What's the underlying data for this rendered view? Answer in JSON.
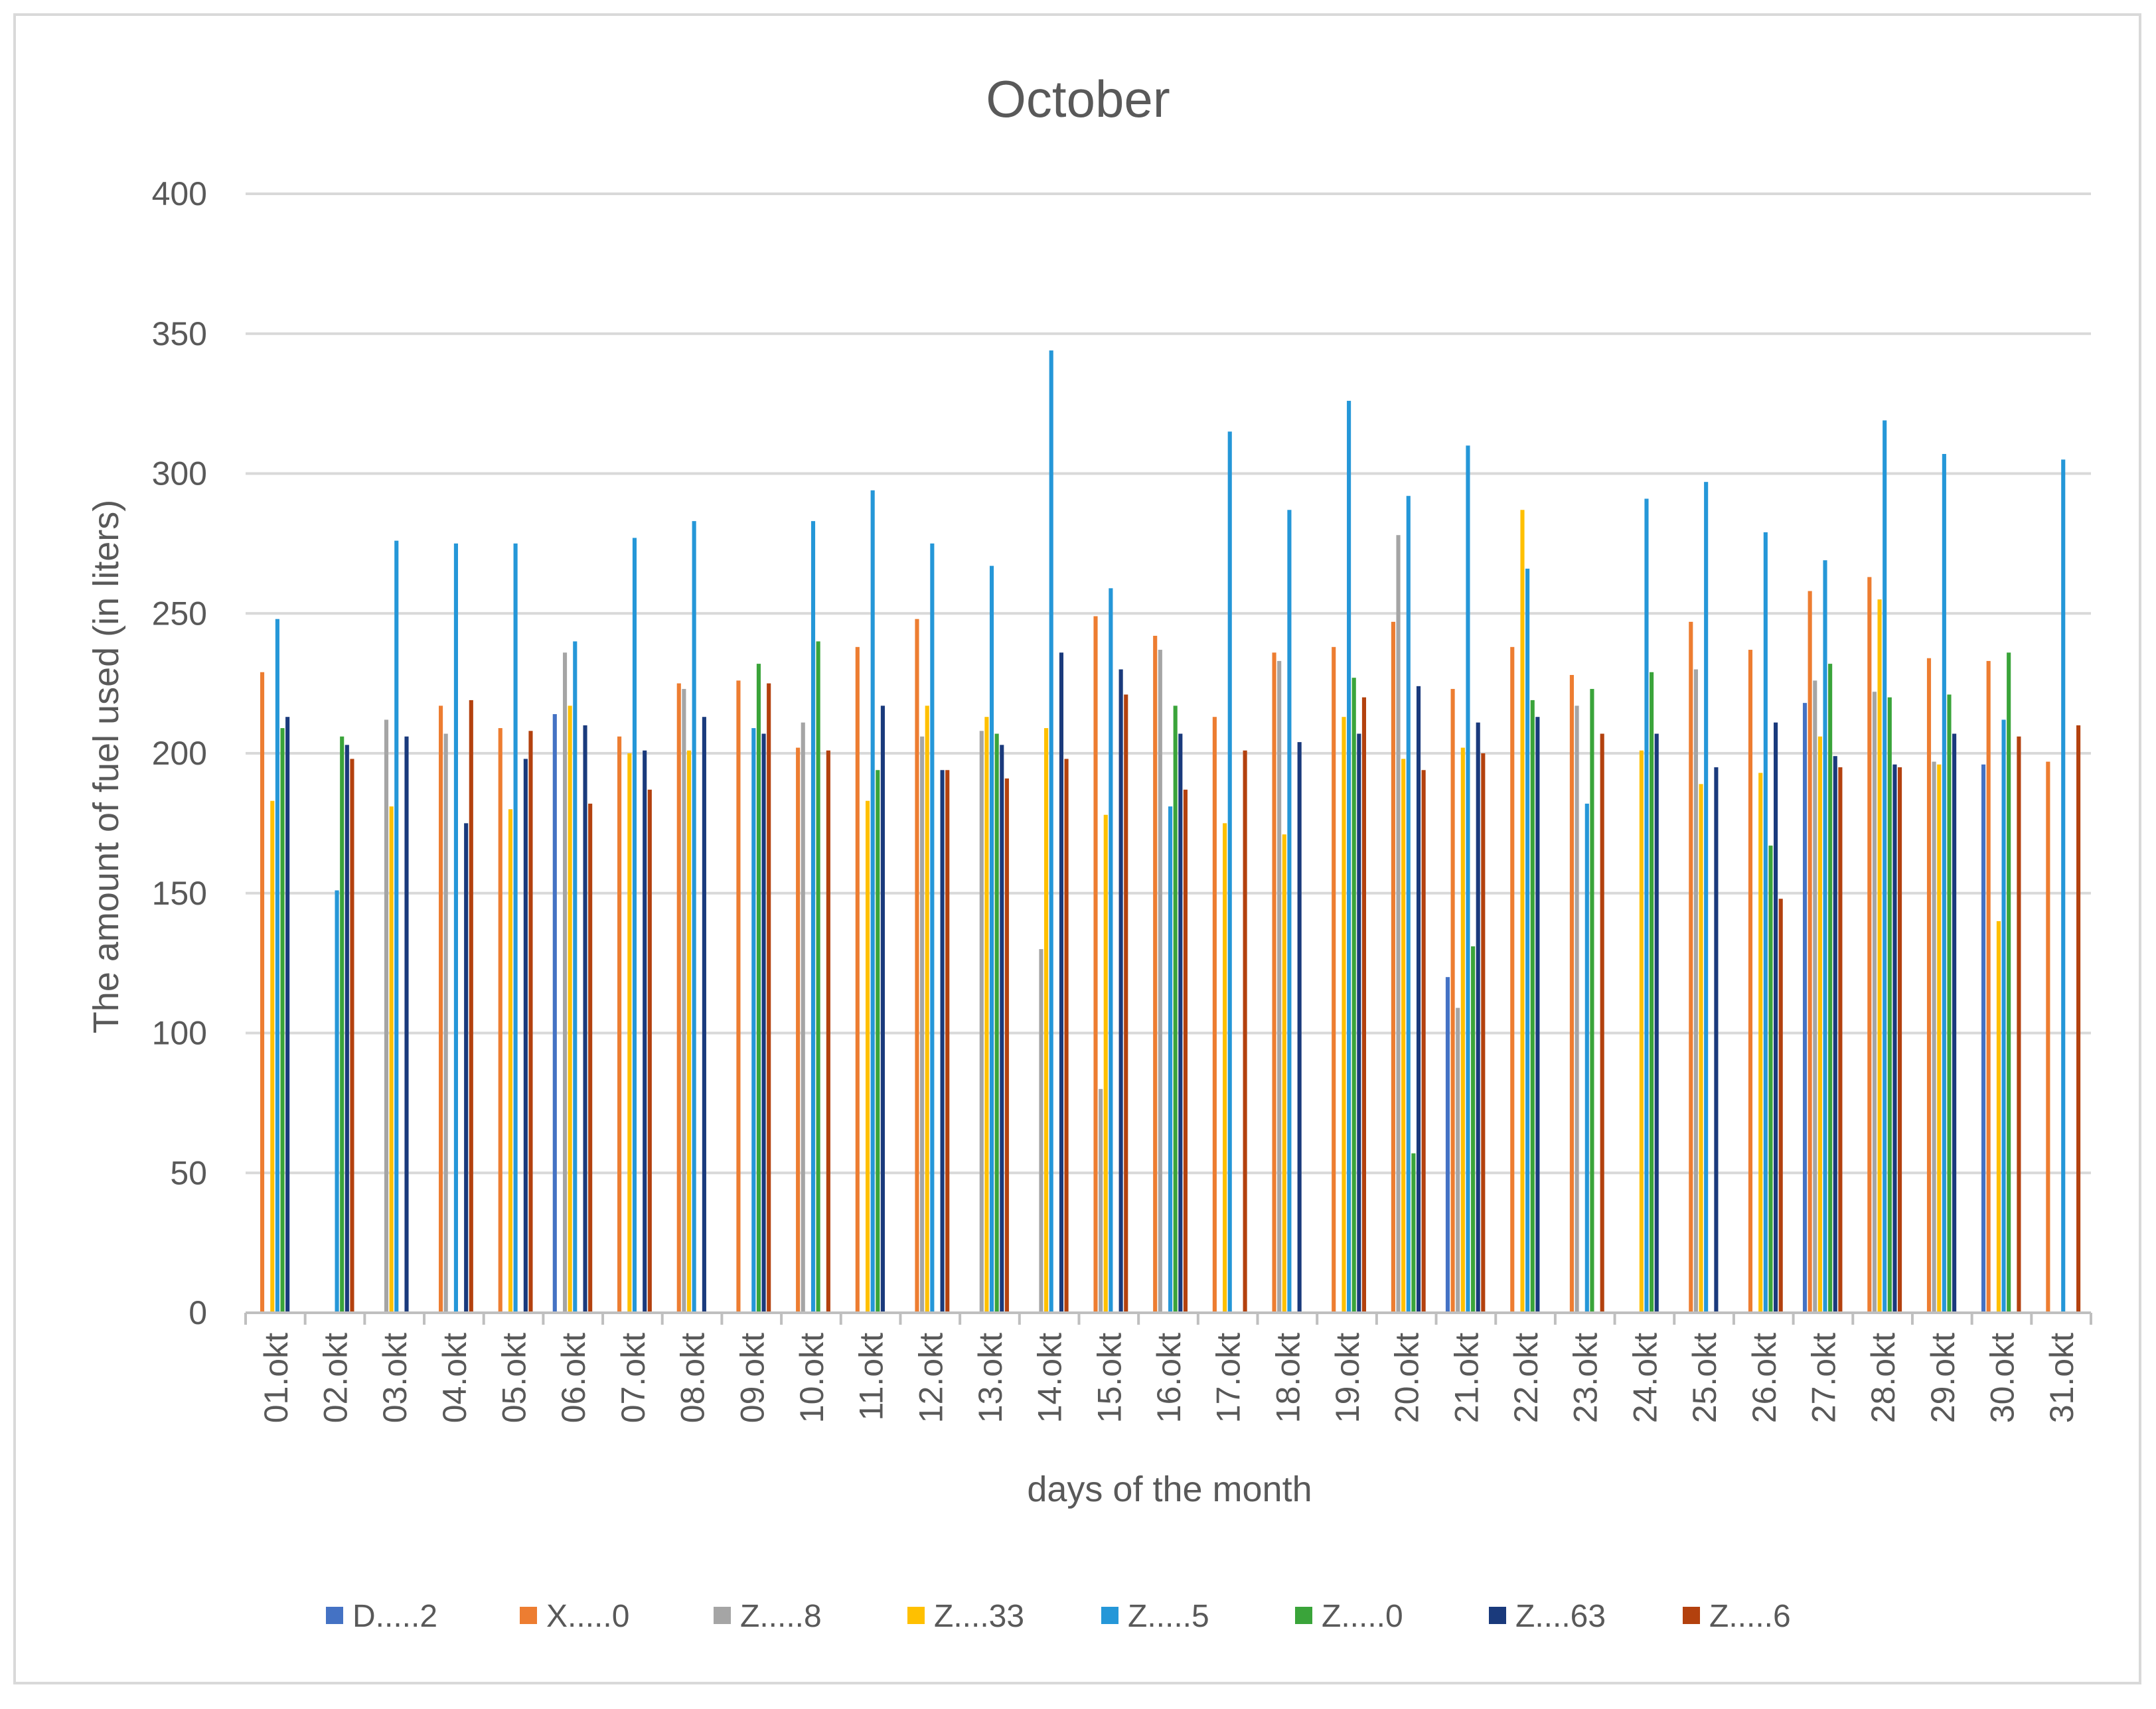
{
  "chart_data": {
    "type": "bar",
    "title": "October",
    "xlabel": "days of the month",
    "ylabel": "The amount of fuel used (in liters)",
    "ylim": [
      0,
      400
    ],
    "yticks": [
      0,
      50,
      100,
      150,
      200,
      250,
      300,
      350,
      400
    ],
    "grid": true,
    "legend_position": "bottom",
    "categories": [
      "01.okt",
      "02.okt",
      "03.okt",
      "04.okt",
      "05.okt",
      "06.okt",
      "07.okt",
      "08.okt",
      "09.okt",
      "10.okt",
      "11.okt",
      "12.okt",
      "13.okt",
      "14.okt",
      "15.okt",
      "16.okt",
      "17.okt",
      "18.okt",
      "19.okt",
      "20.okt",
      "21.okt",
      "22.okt",
      "23.okt",
      "24.okt",
      "25.okt",
      "26.okt",
      "27.okt",
      "28.okt",
      "29.okt",
      "30.okt",
      "31.okt"
    ],
    "series": [
      {
        "name": "D.....2",
        "color": "#4472c4",
        "values": [
          null,
          null,
          null,
          null,
          null,
          214,
          null,
          null,
          null,
          null,
          null,
          null,
          null,
          null,
          null,
          null,
          null,
          null,
          null,
          null,
          120,
          null,
          null,
          null,
          null,
          null,
          218,
          null,
          null,
          196,
          null
        ]
      },
      {
        "name": "X.....0",
        "color": "#ed7d31",
        "values": [
          229,
          null,
          null,
          217,
          209,
          null,
          206,
          225,
          226,
          202,
          238,
          248,
          null,
          null,
          249,
          242,
          213,
          236,
          238,
          247,
          223,
          238,
          228,
          null,
          247,
          237,
          258,
          263,
          234,
          233,
          197
        ]
      },
      {
        "name": "Z.....8",
        "color": "#a5a5a5",
        "values": [
          null,
          null,
          212,
          207,
          null,
          236,
          null,
          223,
          null,
          211,
          null,
          206,
          208,
          130,
          80,
          237,
          null,
          233,
          null,
          278,
          109,
          null,
          217,
          null,
          230,
          null,
          226,
          222,
          197,
          null,
          null
        ]
      },
      {
        "name": "Z....33",
        "color": "#ffc000",
        "values": [
          183,
          null,
          181,
          null,
          180,
          217,
          200,
          201,
          null,
          null,
          183,
          217,
          213,
          209,
          178,
          null,
          175,
          171,
          213,
          198,
          202,
          287,
          null,
          201,
          189,
          193,
          206,
          255,
          196,
          140,
          null
        ]
      },
      {
        "name": "Z.....5",
        "color": "#2597d8",
        "values": [
          248,
          151,
          276,
          275,
          275,
          240,
          277,
          283,
          209,
          283,
          294,
          275,
          267,
          344,
          259,
          181,
          315,
          287,
          326,
          292,
          310,
          266,
          182,
          291,
          297,
          279,
          269,
          319,
          307,
          212,
          305
        ]
      },
      {
        "name": "Z.....0",
        "color": "#3aa43a",
        "values": [
          209,
          206,
          null,
          null,
          null,
          null,
          null,
          null,
          232,
          240,
          194,
          null,
          207,
          null,
          null,
          217,
          null,
          null,
          227,
          57,
          131,
          219,
          223,
          229,
          null,
          167,
          232,
          220,
          221,
          236,
          null
        ]
      },
      {
        "name": "Z....63",
        "color": "#1a3a7c",
        "values": [
          213,
          203,
          206,
          175,
          198,
          210,
          201,
          213,
          207,
          null,
          217,
          194,
          203,
          236,
          230,
          207,
          null,
          204,
          207,
          224,
          211,
          213,
          null,
          207,
          195,
          211,
          199,
          196,
          207,
          null,
          null
        ]
      },
      {
        "name": "Z.....6",
        "color": "#b3410e",
        "values": [
          null,
          198,
          null,
          219,
          208,
          182,
          187,
          null,
          225,
          201,
          null,
          194,
          191,
          198,
          221,
          187,
          201,
          null,
          220,
          194,
          200,
          null,
          207,
          null,
          null,
          148,
          195,
          195,
          null,
          206,
          210
        ]
      }
    ]
  }
}
